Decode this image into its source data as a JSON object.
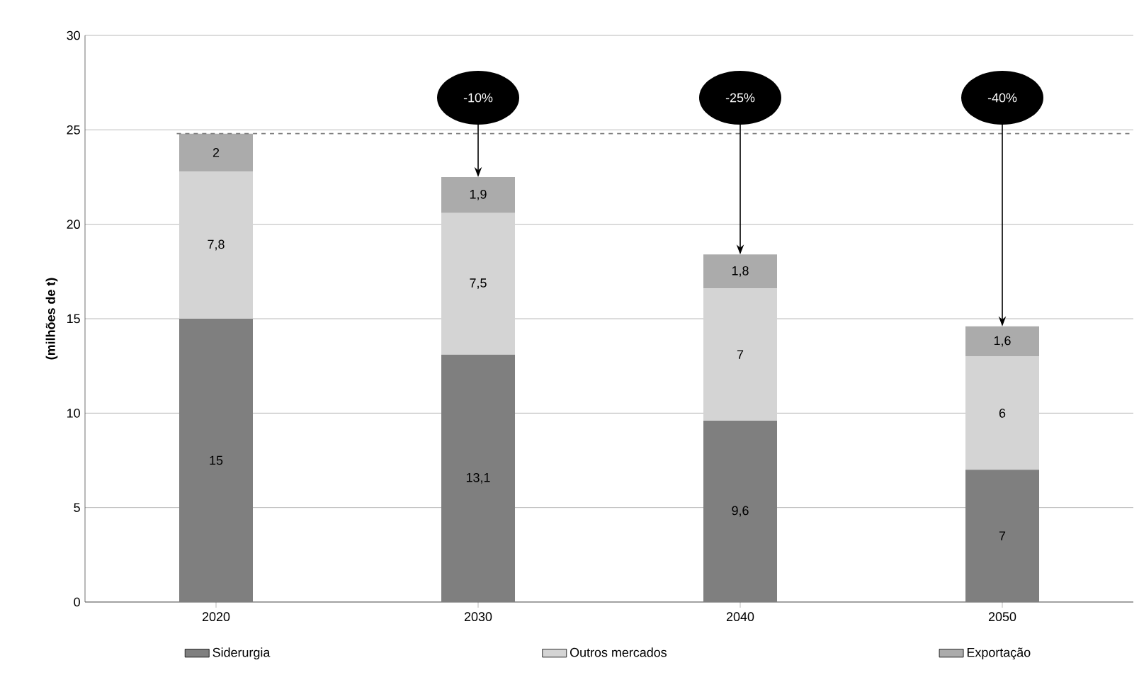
{
  "chart_data": {
    "type": "bar",
    "stacked": true,
    "ylabel": "(milhões de t)",
    "categories": [
      "2020",
      "2030",
      "2040",
      "2050"
    ],
    "series": [
      {
        "name": "Siderurgia",
        "color": "#7f7f7f",
        "values": [
          15,
          13.1,
          9.6,
          7
        ],
        "value_labels": [
          "15",
          "13,1",
          "9,6",
          "7"
        ]
      },
      {
        "name": "Outros mercados",
        "color": "#d4d4d4",
        "values": [
          7.8,
          7.5,
          7,
          6
        ],
        "value_labels": [
          "7,8",
          "7,5",
          "7",
          "6"
        ]
      },
      {
        "name": "Exportação",
        "color": "#ababab",
        "values": [
          2,
          1.9,
          1.8,
          1.6
        ],
        "value_labels": [
          "2",
          "1,9",
          "1,8",
          "1,6"
        ]
      }
    ],
    "ylim": [
      0,
      30
    ],
    "yticks": [
      0,
      5,
      10,
      15,
      20,
      25,
      30
    ],
    "grid": "y",
    "legend": "bottom",
    "ref_lines": [
      {
        "axis": "y",
        "value": 24.8,
        "color": "#808080",
        "line_style": "dashed"
      }
    ],
    "annotations": [
      "-10%",
      "-25%",
      "-40%"
    ]
  }
}
